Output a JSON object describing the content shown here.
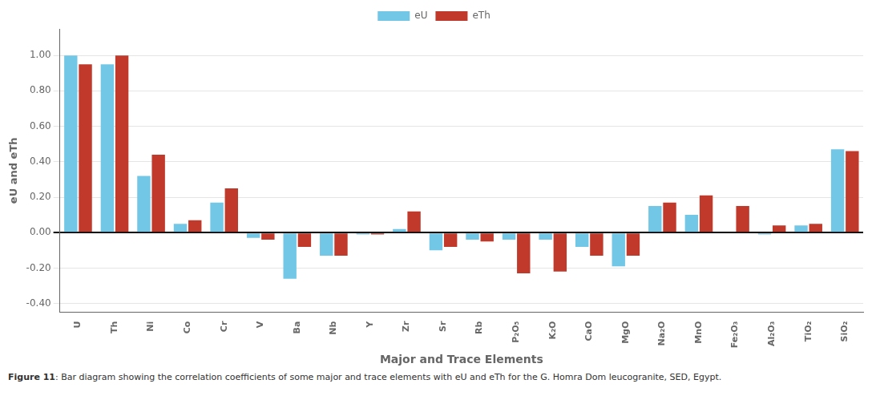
{
  "chart_data": {
    "type": "bar",
    "categories": [
      "U",
      "Th",
      "Ni",
      "Co",
      "Cr",
      "V",
      "Ba",
      "Nb",
      "Y",
      "Zr",
      "Sr",
      "Rb",
      "P₂O₅",
      "K₂O",
      "CaO",
      "MgO",
      "Na₂O",
      "MnO",
      "Fe₂O₃",
      "Al₂O₃",
      "TiO₂",
      "SiO₂"
    ],
    "series": [
      {
        "name": "eU",
        "color": "#72C7E7",
        "values": [
          1.0,
          0.95,
          0.32,
          0.05,
          0.17,
          -0.03,
          -0.26,
          -0.13,
          -0.01,
          0.02,
          -0.1,
          -0.04,
          -0.04,
          -0.04,
          -0.08,
          -0.19,
          0.15,
          0.1,
          0.0,
          -0.01,
          0.04,
          0.47
        ]
      },
      {
        "name": "eTh",
        "color": "#C0392B",
        "values": [
          0.95,
          1.0,
          0.44,
          0.07,
          0.25,
          -0.04,
          -0.08,
          -0.13,
          -0.01,
          0.12,
          -0.08,
          -0.05,
          -0.23,
          -0.22,
          -0.13,
          -0.13,
          0.17,
          0.21,
          0.15,
          0.04,
          0.05,
          0.46
        ]
      }
    ],
    "xlabel": "Major and Trace Elements",
    "ylabel": "eU and eTh",
    "ylim": [
      -0.45,
      1.15
    ],
    "yticks": [
      {
        "value": -0.4,
        "label": "-0.40"
      },
      {
        "value": -0.2,
        "label": "-0.20"
      },
      {
        "value": 0.0,
        "label": "0.00"
      },
      {
        "value": 0.2,
        "label": "0.20"
      },
      {
        "value": 0.4,
        "label": "0.40"
      },
      {
        "value": 0.6,
        "label": "0.60"
      },
      {
        "value": 0.8,
        "label": "0.80"
      },
      {
        "value": 1.0,
        "label": "1.00"
      }
    ],
    "grid": "y",
    "legend": "top",
    "annotations": [
      "Figure 11",
      ": Bar diagram showing the correlation coefficients of some major and trace elements with eU and eTh for the G. Homra Dom leucogranite, SED, Egypt."
    ]
  }
}
